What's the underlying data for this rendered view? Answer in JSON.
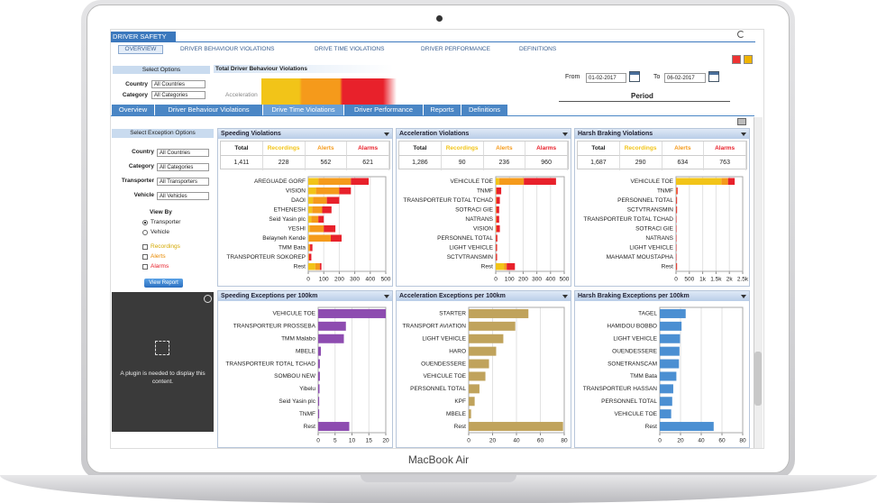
{
  "app": {
    "title": "DRIVER SAFETY",
    "nav": [
      "OVERVIEW",
      "DRIVER BEHAVIOUR VIOLATIONS",
      "DRIVE TIME VIOLATIONS",
      "DRIVER PERFORMANCE",
      "DEFINITIONS"
    ],
    "select_options": "Select Options",
    "filters": [
      {
        "label": "Country",
        "value": "All Countries"
      },
      {
        "label": "Category",
        "value": "All Categories"
      }
    ],
    "summary_title": "Total Driver Behaviour Violations",
    "summary_label": "Acceleration",
    "from_label": "From",
    "from": "01-02-2017",
    "to_label": "To",
    "to": "06-02-2017",
    "period": "Period",
    "tabs": [
      "Overview",
      "Driver Behaviour Violations",
      "Drive Time Violations",
      "Driver Performance",
      "Reports",
      "Definitions"
    ]
  },
  "sidebar": {
    "title": "Select Exception Options",
    "filters": [
      {
        "label": "Country",
        "value": "All Countries"
      },
      {
        "label": "Category",
        "value": "All Categories"
      },
      {
        "label": "Transporter",
        "value": "All Transporters"
      },
      {
        "label": "Vehicle",
        "value": "All Vehicles"
      }
    ],
    "view_by": "View By",
    "options": [
      "Transporter",
      "Vehicle"
    ],
    "checks": [
      "Recordings",
      "Alerts",
      "Alarms"
    ],
    "button": "View Report",
    "plugin": "A plugin is needed to display this content."
  },
  "chart_data": [
    {
      "type": "stacked_bar",
      "title": "Speeding Violations",
      "total_label": "Total",
      "table_values": [
        "1,411",
        228,
        562,
        621
      ],
      "categories": [
        "AREGUADE GORF",
        "VISION",
        "DAOI",
        "ETHENESH",
        "Seid Yasin plc",
        "YESHI",
        "Belayneh Kende",
        "TMM Bata",
        "TRANSPORTEUR SOKOREP",
        "Rest"
      ],
      "series": [
        {
          "name": "Recordings",
          "color": "#f2c418",
          "values": [
            65,
            50,
            30,
            25,
            20,
            10,
            5,
            2,
            0,
            45
          ]
        },
        {
          "name": "Alerts",
          "color": "#f59a1b",
          "values": [
            210,
            150,
            90,
            65,
            45,
            90,
            140,
            10,
            5,
            30
          ]
        },
        {
          "name": "Alarms",
          "color": "#e8212b",
          "values": [
            115,
            75,
            80,
            60,
            35,
            75,
            70,
            15,
            15,
            10
          ]
        }
      ],
      "xlim": [
        0,
        500
      ],
      "xticks": [
        0,
        100,
        200,
        300,
        400,
        500
      ],
      "grid": true
    },
    {
      "type": "stacked_bar",
      "title": "Acceleration Violations",
      "total_label": "Total",
      "table_values": [
        "1,286",
        90,
        236,
        960
      ],
      "categories": [
        "VEHICULE TOE",
        "TNMF",
        "TRANSPORTEUR TOTAL TCHAD",
        "SOTRACI GIE",
        "NATRANS",
        "VISION",
        "PERSONNEL TOTAL",
        "LIGHT VEHICLE",
        "SCTVTRANSMIN",
        "Rest"
      ],
      "series": [
        {
          "name": "Recordings",
          "color": "#f2c418",
          "values": [
            25,
            0,
            0,
            0,
            0,
            0,
            0,
            0,
            0,
            60
          ]
        },
        {
          "name": "Alerts",
          "color": "#f59a1b",
          "values": [
            180,
            5,
            5,
            5,
            5,
            5,
            2,
            2,
            2,
            20
          ]
        },
        {
          "name": "Alarms",
          "color": "#e8212b",
          "values": [
            235,
            35,
            25,
            20,
            20,
            25,
            10,
            8,
            8,
            60
          ]
        }
      ],
      "xlim": [
        0,
        500
      ],
      "xticks": [
        0,
        100,
        200,
        300,
        400,
        500
      ],
      "grid": true
    },
    {
      "type": "stacked_bar",
      "title": "Harsh Braking Violations",
      "total_label": "Total",
      "table_values": [
        "1,687",
        290,
        634,
        763
      ],
      "categories": [
        "VEHICULE TOE",
        "TNMF",
        "PERSONNEL TOTAL",
        "SCTVTRANSMIN",
        "TRANSPORTEUR TOTAL TCHAD",
        "SOTRACI GIE",
        "NATRANS",
        "LIGHT VEHICLE",
        "MAHAMAT MOUSTAPHA",
        "Rest"
      ],
      "series": [
        {
          "name": "Recordings",
          "color": "#f2c418",
          "values": [
            1700,
            0,
            0,
            0,
            0,
            0,
            0,
            0,
            0,
            0
          ]
        },
        {
          "name": "Alerts",
          "color": "#f59a1b",
          "values": [
            250,
            20,
            10,
            10,
            5,
            5,
            5,
            5,
            5,
            10
          ]
        },
        {
          "name": "Alarms",
          "color": "#e8212b",
          "values": [
            250,
            40,
            30,
            30,
            15,
            15,
            15,
            15,
            15,
            30
          ]
        }
      ],
      "xlim": [
        0,
        2500
      ],
      "xticks": [
        0,
        500,
        {
          "value": 1000,
          "label": "1k"
        },
        {
          "value": 1500,
          "label": "1.5k"
        },
        {
          "value": 2000,
          "label": "2k"
        },
        {
          "value": 2500,
          "label": "2.5k"
        }
      ],
      "grid": true
    },
    {
      "type": "bar",
      "title": "Speeding Exceptions per 100km",
      "categories": [
        "VEHICULE TOE",
        "TRANSPORTEUR PROSSEBA",
        "TMM Malabo",
        "MBELE",
        "TRANSPORTEUR TOTAL TCHAD",
        "SOMBOU NEW",
        "Yibelu",
        "Seid Yasin plc",
        "TNMF",
        "Rest"
      ],
      "values": [
        20,
        8.2,
        7.6,
        0.8,
        0.5,
        0.5,
        0.4,
        0.3,
        0.3,
        9.2
      ],
      "color": "#8d4cb0",
      "xlim": [
        0,
        20
      ],
      "xticks": [
        0,
        5,
        10,
        15,
        20
      ],
      "grid": true
    },
    {
      "type": "bar",
      "title": "Acceleration Exceptions per 100km",
      "categories": [
        "STARTER",
        "TRANSPORT AVIATION",
        "LIGHT VEHICLE",
        "HARO",
        "OUENDESSERE",
        "VEHICULE TOE",
        "PERSONNEL TOTAL",
        "KPF",
        "MBELE",
        "Rest"
      ],
      "values": [
        50,
        39,
        29,
        23,
        17,
        14,
        9,
        5,
        2,
        79
      ],
      "color": "#c0a35c",
      "xlim": [
        0,
        80
      ],
      "xticks": [
        0,
        20,
        40,
        60,
        80
      ],
      "grid": true
    },
    {
      "type": "bar",
      "title": "Harsh Braking Exceptions per 100km",
      "categories": [
        "TAGEL",
        "HAMIDOU BOBBO",
        "LIGHT VEHICLE",
        "OUENDESSERE",
        "SONETRANSCAM",
        "TMM Bata",
        "TRANSPORTEUR HASSAN",
        "PERSONNEL TOTAL",
        "VEHICULE TOE",
        "Rest"
      ],
      "values": [
        25,
        21,
        19.5,
        19,
        18.5,
        16,
        13,
        12,
        11,
        52
      ],
      "color": "#4b8fd2",
      "xlim": [
        0,
        80
      ],
      "xticks": [
        0,
        20,
        40,
        60,
        80
      ],
      "grid": true
    }
  ],
  "device": "MacBook Air"
}
